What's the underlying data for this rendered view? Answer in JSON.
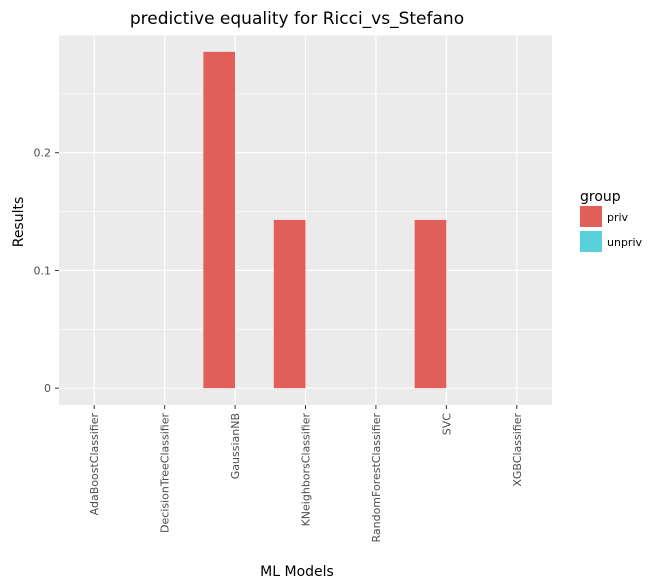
{
  "chart_data": {
    "type": "bar",
    "title": "predictive equality for Ricci_vs_Stefano",
    "xlabel": "ML Models",
    "ylabel": "Results",
    "categories": [
      "AdaBoostClassifier",
      "DecisionTreeClassifier",
      "GaussianNB",
      "KNeighborsClassifier",
      "RandomForestClassifier",
      "SVC",
      "XGBClassifier"
    ],
    "series": [
      {
        "name": "priv",
        "color": "#E05F59",
        "values": [
          0,
          0,
          0.2857,
          0.1429,
          0,
          0.1429,
          0
        ]
      },
      {
        "name": "unpriv",
        "color": "#58D1DA",
        "values": [
          0,
          0,
          0,
          0,
          0,
          0,
          0
        ]
      }
    ],
    "ylim": [
      -0.0143,
      0.3
    ],
    "yticks": [
      0,
      0.1,
      0.2
    ],
    "ytick_labels": [
      "0",
      "0.1",
      "0.2"
    ],
    "grid": true,
    "legend": {
      "title": "group",
      "position": "right"
    },
    "panel_color": "#EBEBEB",
    "grid_color": "#FFFFFF"
  }
}
